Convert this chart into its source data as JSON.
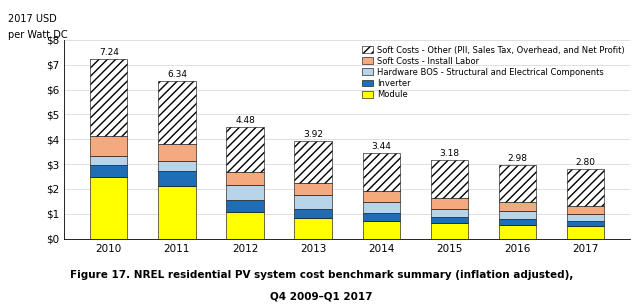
{
  "years": [
    2010,
    2011,
    2012,
    2013,
    2014,
    2015,
    2016,
    2017
  ],
  "totals": [
    7.24,
    6.34,
    4.48,
    3.92,
    3.44,
    3.18,
    2.98,
    2.8
  ],
  "module": [
    2.5,
    2.1,
    1.08,
    0.84,
    0.72,
    0.64,
    0.54,
    0.52
  ],
  "inverter": [
    0.48,
    0.62,
    0.46,
    0.36,
    0.3,
    0.24,
    0.24,
    0.2
  ],
  "hardware_bos": [
    0.34,
    0.4,
    0.6,
    0.55,
    0.46,
    0.33,
    0.34,
    0.27
  ],
  "soft_install": [
    0.82,
    0.68,
    0.55,
    0.5,
    0.44,
    0.42,
    0.37,
    0.31
  ],
  "soft_other": [
    3.1,
    2.54,
    1.79,
    1.67,
    1.52,
    1.55,
    1.49,
    1.5
  ],
  "colors": {
    "module": "#ffff00",
    "inverter": "#1f6eb5",
    "hardware_bos": "#b8d4e8",
    "soft_install": "#f4a97f",
    "soft_other_face": "#ffffff"
  },
  "ylim": [
    0,
    8
  ],
  "yticks": [
    0,
    1,
    2,
    3,
    4,
    5,
    6,
    7,
    8
  ],
  "ytick_labels": [
    "$0",
    "$1",
    "$2",
    "$3",
    "$4",
    "$5",
    "$6",
    "$7",
    "$8"
  ],
  "ylabel_line1": "2017 USD",
  "ylabel_line2": "per Watt DC",
  "legend_labels": [
    "Soft Costs - Other (PII, Sales Tax, Overhead, and Net Profit)",
    "Soft Costs - Install Labor",
    "Hardware BOS - Structural and Electrical Components",
    "Inverter",
    "Module"
  ],
  "caption_line1": "Figure 17. NREL residential PV system cost benchmark summary (inflation adjusted),",
  "caption_line2": "Q4 2009–Q1 2017",
  "bar_width": 0.55
}
